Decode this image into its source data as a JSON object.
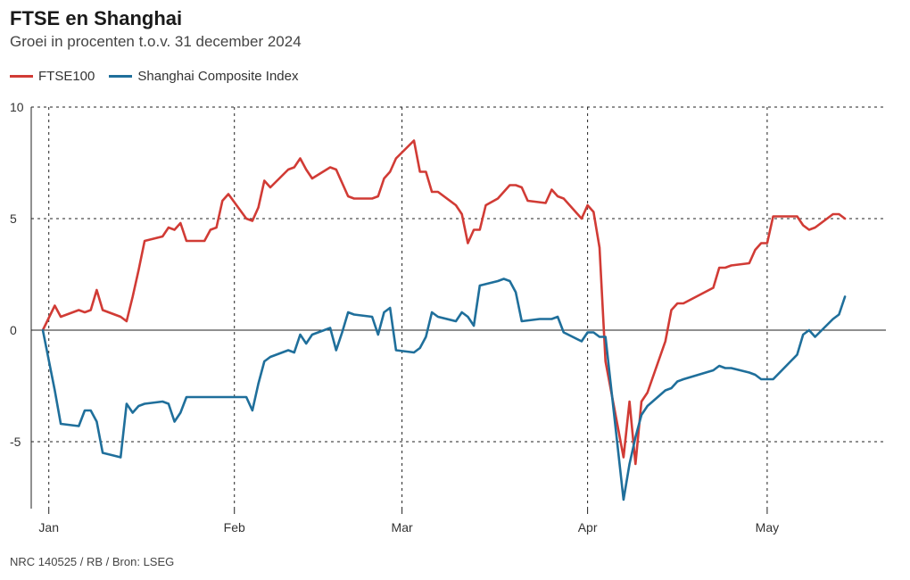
{
  "header": {
    "title": "FTSE en Shanghai",
    "subtitle": "Groei in procenten t.o.v. 31 december 2024"
  },
  "legend": [
    {
      "label": "FTSE100",
      "color": "#d13b35"
    },
    {
      "label": "Shanghai Composite Index",
      "color": "#1f6f9b"
    }
  ],
  "footer": {
    "source": "NRC 140525 / RB / Bron: LSEG"
  },
  "chart_data": {
    "type": "line",
    "title": "FTSE en Shanghai",
    "subtitle": "Groei in procenten t.o.v. 31 december 2024",
    "ylim": [
      -8,
      10
    ],
    "yticks": [
      10,
      5,
      0,
      -5
    ],
    "ytick_labels": [
      "10",
      "5",
      "0",
      "-5"
    ],
    "xlim": [
      "2024-12-31",
      "2025-05-16"
    ],
    "xticks": [
      {
        "date": "2025-01-01",
        "label": "Jan"
      },
      {
        "date": "2025-02-01",
        "label": "Feb"
      },
      {
        "date": "2025-03-01",
        "label": "Mar"
      },
      {
        "date": "2025-04-01",
        "label": "Apr"
      },
      {
        "date": "2025-05-01",
        "label": "May"
      }
    ],
    "grid": true,
    "legend_position": "top-left",
    "series": [
      {
        "name": "FTSE100",
        "color": "#d13b35",
        "points": [
          [
            "2024-12-31",
            0.0
          ],
          [
            "2025-01-02",
            1.1
          ],
          [
            "2025-01-03",
            0.6
          ],
          [
            "2025-01-06",
            0.9
          ],
          [
            "2025-01-07",
            0.8
          ],
          [
            "2025-01-08",
            0.9
          ],
          [
            "2025-01-09",
            1.8
          ],
          [
            "2025-01-10",
            0.9
          ],
          [
            "2025-01-13",
            0.6
          ],
          [
            "2025-01-14",
            0.4
          ],
          [
            "2025-01-15",
            1.5
          ],
          [
            "2025-01-16",
            2.7
          ],
          [
            "2025-01-17",
            4.0
          ],
          [
            "2025-01-20",
            4.2
          ],
          [
            "2025-01-21",
            4.6
          ],
          [
            "2025-01-22",
            4.5
          ],
          [
            "2025-01-23",
            4.8
          ],
          [
            "2025-01-24",
            4.0
          ],
          [
            "2025-01-27",
            4.0
          ],
          [
            "2025-01-28",
            4.5
          ],
          [
            "2025-01-29",
            4.6
          ],
          [
            "2025-01-30",
            5.8
          ],
          [
            "2025-01-31",
            6.1
          ],
          [
            "2025-02-03",
            5.0
          ],
          [
            "2025-02-04",
            4.9
          ],
          [
            "2025-02-05",
            5.5
          ],
          [
            "2025-02-06",
            6.7
          ],
          [
            "2025-02-07",
            6.4
          ],
          [
            "2025-02-10",
            7.2
          ],
          [
            "2025-02-11",
            7.3
          ],
          [
            "2025-02-12",
            7.7
          ],
          [
            "2025-02-13",
            7.2
          ],
          [
            "2025-02-14",
            6.8
          ],
          [
            "2025-02-17",
            7.3
          ],
          [
            "2025-02-18",
            7.2
          ],
          [
            "2025-02-19",
            6.6
          ],
          [
            "2025-02-20",
            6.0
          ],
          [
            "2025-02-21",
            5.9
          ],
          [
            "2025-02-24",
            5.9
          ],
          [
            "2025-02-25",
            6.0
          ],
          [
            "2025-02-26",
            6.8
          ],
          [
            "2025-02-27",
            7.1
          ],
          [
            "2025-02-28",
            7.7
          ],
          [
            "2025-03-03",
            8.5
          ],
          [
            "2025-03-04",
            7.1
          ],
          [
            "2025-03-05",
            7.1
          ],
          [
            "2025-03-06",
            6.2
          ],
          [
            "2025-03-07",
            6.2
          ],
          [
            "2025-03-10",
            5.6
          ],
          [
            "2025-03-11",
            5.2
          ],
          [
            "2025-03-12",
            3.9
          ],
          [
            "2025-03-13",
            4.5
          ],
          [
            "2025-03-14",
            4.5
          ],
          [
            "2025-03-15",
            5.6
          ],
          [
            "2025-03-17",
            5.9
          ],
          [
            "2025-03-18",
            6.2
          ],
          [
            "2025-03-19",
            6.5
          ],
          [
            "2025-03-20",
            6.5
          ],
          [
            "2025-03-21",
            6.4
          ],
          [
            "2025-03-22",
            5.8
          ],
          [
            "2025-03-25",
            5.7
          ],
          [
            "2025-03-26",
            6.3
          ],
          [
            "2025-03-27",
            6.0
          ],
          [
            "2025-03-28",
            5.9
          ],
          [
            "2025-03-31",
            5.0
          ],
          [
            "2025-04-01",
            5.6
          ],
          [
            "2025-04-02",
            5.3
          ],
          [
            "2025-04-03",
            3.7
          ],
          [
            "2025-04-04",
            -1.4
          ],
          [
            "2025-04-07",
            -5.7
          ],
          [
            "2025-04-08",
            -3.2
          ],
          [
            "2025-04-09",
            -6.0
          ],
          [
            "2025-04-10",
            -3.2
          ],
          [
            "2025-04-11",
            -2.8
          ],
          [
            "2025-04-14",
            -0.5
          ],
          [
            "2025-04-15",
            0.9
          ],
          [
            "2025-04-16",
            1.2
          ],
          [
            "2025-04-17",
            1.2
          ],
          [
            "2025-04-22",
            1.9
          ],
          [
            "2025-04-23",
            2.8
          ],
          [
            "2025-04-24",
            2.8
          ],
          [
            "2025-04-25",
            2.9
          ],
          [
            "2025-04-28",
            3.0
          ],
          [
            "2025-04-29",
            3.6
          ],
          [
            "2025-04-30",
            3.9
          ],
          [
            "2025-05-01",
            3.9
          ],
          [
            "2025-05-02",
            5.1
          ],
          [
            "2025-05-06",
            5.1
          ],
          [
            "2025-05-07",
            4.7
          ],
          [
            "2025-05-08",
            4.5
          ],
          [
            "2025-05-09",
            4.6
          ],
          [
            "2025-05-12",
            5.2
          ],
          [
            "2025-05-13",
            5.2
          ],
          [
            "2025-05-14",
            5.0
          ]
        ]
      },
      {
        "name": "Shanghai Composite Index",
        "color": "#1f6f9b",
        "points": [
          [
            "2024-12-31",
            0.0
          ],
          [
            "2025-01-02",
            -2.7
          ],
          [
            "2025-01-03",
            -4.2
          ],
          [
            "2025-01-06",
            -4.3
          ],
          [
            "2025-01-07",
            -3.6
          ],
          [
            "2025-01-08",
            -3.6
          ],
          [
            "2025-01-09",
            -4.1
          ],
          [
            "2025-01-10",
            -5.5
          ],
          [
            "2025-01-13",
            -5.7
          ],
          [
            "2025-01-14",
            -3.3
          ],
          [
            "2025-01-15",
            -3.7
          ],
          [
            "2025-01-16",
            -3.4
          ],
          [
            "2025-01-17",
            -3.3
          ],
          [
            "2025-01-20",
            -3.2
          ],
          [
            "2025-01-21",
            -3.3
          ],
          [
            "2025-01-22",
            -4.1
          ],
          [
            "2025-01-23",
            -3.7
          ],
          [
            "2025-01-24",
            -3.0
          ],
          [
            "2025-01-27",
            -3.0
          ],
          [
            "2025-02-03",
            -3.0
          ],
          [
            "2025-02-04",
            -3.6
          ],
          [
            "2025-02-05",
            -2.4
          ],
          [
            "2025-02-06",
            -1.4
          ],
          [
            "2025-02-07",
            -1.2
          ],
          [
            "2025-02-10",
            -0.9
          ],
          [
            "2025-02-11",
            -1.0
          ],
          [
            "2025-02-12",
            -0.2
          ],
          [
            "2025-02-13",
            -0.6
          ],
          [
            "2025-02-14",
            -0.2
          ],
          [
            "2025-02-17",
            0.1
          ],
          [
            "2025-02-18",
            -0.9
          ],
          [
            "2025-02-19",
            -0.1
          ],
          [
            "2025-02-20",
            0.8
          ],
          [
            "2025-02-21",
            0.7
          ],
          [
            "2025-02-24",
            0.6
          ],
          [
            "2025-02-25",
            -0.2
          ],
          [
            "2025-02-26",
            0.8
          ],
          [
            "2025-02-27",
            1.0
          ],
          [
            "2025-02-28",
            -0.9
          ],
          [
            "2025-03-03",
            -1.0
          ],
          [
            "2025-03-04",
            -0.8
          ],
          [
            "2025-03-05",
            -0.3
          ],
          [
            "2025-03-06",
            0.8
          ],
          [
            "2025-03-07",
            0.6
          ],
          [
            "2025-03-10",
            0.4
          ],
          [
            "2025-03-11",
            0.8
          ],
          [
            "2025-03-12",
            0.6
          ],
          [
            "2025-03-13",
            0.2
          ],
          [
            "2025-03-14",
            2.0
          ],
          [
            "2025-03-17",
            2.2
          ],
          [
            "2025-03-18",
            2.3
          ],
          [
            "2025-03-19",
            2.2
          ],
          [
            "2025-03-20",
            1.7
          ],
          [
            "2025-03-21",
            0.4
          ],
          [
            "2025-03-24",
            0.5
          ],
          [
            "2025-03-25",
            0.5
          ],
          [
            "2025-03-26",
            0.5
          ],
          [
            "2025-03-27",
            0.6
          ],
          [
            "2025-03-28",
            -0.1
          ],
          [
            "2025-03-31",
            -0.5
          ],
          [
            "2025-04-01",
            -0.1
          ],
          [
            "2025-04-02",
            -0.1
          ],
          [
            "2025-04-03",
            -0.3
          ],
          [
            "2025-04-04",
            -0.3
          ],
          [
            "2025-04-07",
            -7.6
          ],
          [
            "2025-04-08",
            -6.0
          ],
          [
            "2025-04-09",
            -4.8
          ],
          [
            "2025-04-10",
            -3.8
          ],
          [
            "2025-04-11",
            -3.4
          ],
          [
            "2025-04-14",
            -2.7
          ],
          [
            "2025-04-15",
            -2.6
          ],
          [
            "2025-04-16",
            -2.3
          ],
          [
            "2025-04-17",
            -2.2
          ],
          [
            "2025-04-22",
            -1.8
          ],
          [
            "2025-04-23",
            -1.6
          ],
          [
            "2025-04-24",
            -1.7
          ],
          [
            "2025-04-25",
            -1.7
          ],
          [
            "2025-04-28",
            -1.9
          ],
          [
            "2025-04-29",
            -2.0
          ],
          [
            "2025-04-30",
            -2.2
          ],
          [
            "2025-05-02",
            -2.2
          ],
          [
            "2025-05-06",
            -1.1
          ],
          [
            "2025-05-07",
            -0.2
          ],
          [
            "2025-05-08",
            0.0
          ],
          [
            "2025-05-09",
            -0.3
          ],
          [
            "2025-05-12",
            0.5
          ],
          [
            "2025-05-13",
            0.7
          ],
          [
            "2025-05-14",
            1.5
          ]
        ]
      }
    ]
  }
}
